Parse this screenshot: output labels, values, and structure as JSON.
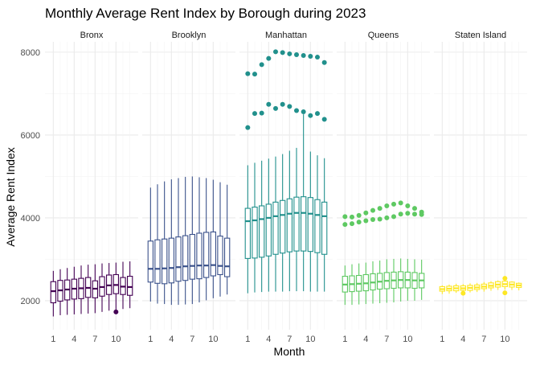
{
  "chart_data": {
    "type": "box",
    "title": "Monthly Average Rent Index by Borough during 2023",
    "xlabel": "Month",
    "ylabel": "Average Rent Index",
    "x_ticks": [
      "1",
      "4",
      "7",
      "10"
    ],
    "y_ticks": [
      "2000",
      "4000",
      "6000",
      "8000"
    ],
    "ylim": [
      1300,
      8250
    ],
    "grid": true,
    "legend": "none",
    "facet_by": "Borough",
    "months": [
      1,
      2,
      3,
      4,
      5,
      6,
      7,
      8,
      9,
      10,
      11,
      12
    ],
    "panels": [
      {
        "name": "Bronx",
        "color": "#440154",
        "box_stats": {
          "q1": [
            1950,
            1990,
            2020,
            2040,
            2050,
            2080,
            2070,
            2110,
            2150,
            2170,
            2150,
            2130
          ],
          "median": [
            2230,
            2250,
            2270,
            2290,
            2300,
            2310,
            2290,
            2330,
            2370,
            2380,
            2340,
            2330
          ],
          "q3": [
            2460,
            2490,
            2500,
            2520,
            2540,
            2560,
            2480,
            2580,
            2620,
            2630,
            2560,
            2590
          ],
          "lo": [
            1620,
            1650,
            1660,
            1670,
            1680,
            1690,
            1700,
            1730,
            1760,
            1770,
            1800,
            1820
          ],
          "hi": [
            2720,
            2760,
            2790,
            2820,
            2850,
            2870,
            2880,
            2900,
            2910,
            2920,
            2940,
            2950
          ]
        },
        "outliers": [
          [
            10,
            1730
          ]
        ]
      },
      {
        "name": "Brooklyn",
        "color": "#3b528b",
        "box_stats": {
          "q1": [
            2450,
            2420,
            2410,
            2430,
            2470,
            2490,
            2520,
            2530,
            2560,
            2600,
            2630,
            2580
          ],
          "median": [
            2770,
            2770,
            2780,
            2790,
            2810,
            2830,
            2840,
            2850,
            2850,
            2860,
            2840,
            2830
          ],
          "q3": [
            3440,
            3470,
            3490,
            3510,
            3540,
            3570,
            3600,
            3630,
            3650,
            3660,
            3560,
            3510
          ],
          "lo": [
            1980,
            1930,
            1920,
            1900,
            1900,
            1910,
            1920,
            1960,
            2010,
            2060,
            2100,
            2150
          ],
          "hi": [
            4730,
            4810,
            4880,
            4930,
            4960,
            4990,
            5000,
            4980,
            4960,
            4920,
            4860,
            4800
          ]
        },
        "outliers": []
      },
      {
        "name": "Manhattan",
        "color": "#21908c",
        "box_stats": {
          "q1": [
            3020,
            3030,
            3050,
            3080,
            3120,
            3150,
            3180,
            3200,
            3200,
            3190,
            3160,
            3120
          ],
          "median": [
            3920,
            3940,
            3970,
            4000,
            4040,
            4070,
            4100,
            4120,
            4120,
            4100,
            4070,
            4040
          ],
          "q3": [
            4230,
            4260,
            4290,
            4330,
            4380,
            4420,
            4460,
            4500,
            4510,
            4490,
            4440,
            4380
          ],
          "lo": [
            2180,
            2200,
            2210,
            2220,
            2220,
            2220,
            2230,
            2230,
            2230,
            2220,
            2220,
            2220
          ],
          "hi": [
            5270,
            5330,
            5380,
            5430,
            5480,
            5540,
            5620,
            5690,
            6500,
            5600,
            5510,
            5440
          ]
        },
        "outliers": [
          [
            1,
            7480
          ],
          [
            2,
            7470
          ],
          [
            3,
            7700
          ],
          [
            4,
            7850
          ],
          [
            5,
            8010
          ],
          [
            6,
            7990
          ],
          [
            7,
            7960
          ],
          [
            8,
            7940
          ],
          [
            9,
            7920
          ],
          [
            10,
            7900
          ],
          [
            11,
            7880
          ],
          [
            12,
            7750
          ],
          [
            1,
            6180
          ],
          [
            2,
            6520
          ],
          [
            3,
            6530
          ],
          [
            4,
            6740
          ],
          [
            5,
            6640
          ],
          [
            6,
            6740
          ],
          [
            7,
            6690
          ],
          [
            8,
            6590
          ],
          [
            9,
            6560
          ],
          [
            10,
            6470
          ],
          [
            11,
            6520
          ],
          [
            12,
            6380
          ]
        ]
      },
      {
        "name": "Queens",
        "color": "#5ec962",
        "box_stats": {
          "q1": [
            2210,
            2220,
            2230,
            2240,
            2260,
            2280,
            2290,
            2300,
            2310,
            2310,
            2300,
            2310
          ],
          "median": [
            2390,
            2400,
            2410,
            2420,
            2440,
            2460,
            2480,
            2490,
            2500,
            2500,
            2490,
            2490
          ],
          "q3": [
            2590,
            2600,
            2610,
            2630,
            2650,
            2660,
            2680,
            2690,
            2700,
            2690,
            2680,
            2660
          ],
          "lo": [
            1900,
            1900,
            1910,
            1920,
            1930,
            1940,
            1950,
            1960,
            1980,
            2000,
            2000,
            2020
          ],
          "hi": [
            2850,
            2880,
            2900,
            2920,
            2950,
            2970,
            3000,
            3010,
            3020,
            3010,
            3000,
            2990
          ]
        },
        "outliers": [
          [
            1,
            4030
          ],
          [
            2,
            4020
          ],
          [
            3,
            4060
          ],
          [
            4,
            4120
          ],
          [
            5,
            4180
          ],
          [
            6,
            4230
          ],
          [
            7,
            4290
          ],
          [
            8,
            4330
          ],
          [
            9,
            4360
          ],
          [
            10,
            4290
          ],
          [
            11,
            4230
          ],
          [
            12,
            4140
          ],
          [
            1,
            3840
          ],
          [
            2,
            3860
          ],
          [
            3,
            3900
          ],
          [
            4,
            3930
          ],
          [
            5,
            3960
          ],
          [
            6,
            3970
          ],
          [
            7,
            4000
          ],
          [
            8,
            4030
          ],
          [
            9,
            4090
          ],
          [
            10,
            4110
          ],
          [
            11,
            4090
          ],
          [
            12,
            4080
          ]
        ]
      },
      {
        "name": "Staten Island",
        "color": "#fde725",
        "box_stats": {
          "q1": [
            2230,
            2240,
            2240,
            2250,
            2250,
            2270,
            2290,
            2310,
            2330,
            2340,
            2330,
            2320
          ],
          "median": [
            2280,
            2290,
            2300,
            2300,
            2310,
            2320,
            2340,
            2360,
            2390,
            2400,
            2390,
            2370
          ],
          "q3": [
            2340,
            2350,
            2360,
            2360,
            2370,
            2380,
            2400,
            2430,
            2460,
            2470,
            2450,
            2420
          ],
          "lo": [
            2160,
            2170,
            2190,
            2190,
            2200,
            2210,
            2220,
            2240,
            2260,
            2270,
            2260,
            2250
          ],
          "hi": [
            2370,
            2390,
            2410,
            2400,
            2420,
            2430,
            2450,
            2470,
            2490,
            2500,
            2470,
            2440
          ]
        },
        "outliers": [
          [
            4,
            2180
          ],
          [
            10,
            2540
          ],
          [
            10,
            2190
          ]
        ]
      }
    ]
  }
}
